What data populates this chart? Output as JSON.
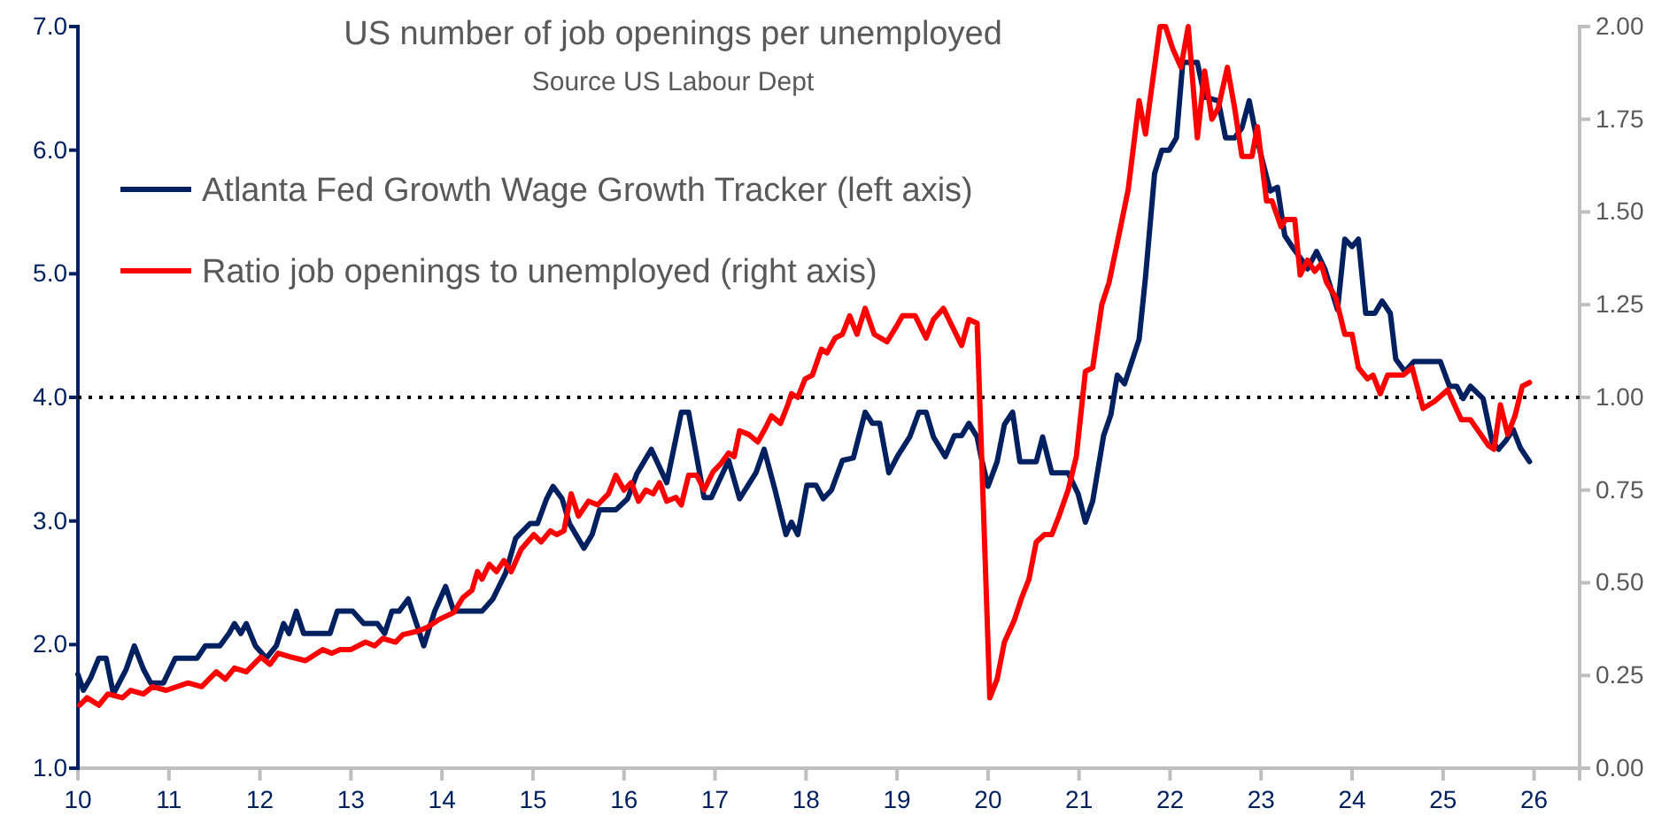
{
  "chart_data": {
    "type": "line",
    "title": "US number of job openings per unemployed",
    "subtitle": "Source US Labour Dept",
    "xlim": [
      10,
      26.5
    ],
    "xticks": [
      10,
      11,
      12,
      13,
      14,
      15,
      16,
      17,
      18,
      19,
      20,
      21,
      22,
      23,
      24,
      25,
      26
    ],
    "ylim": [
      1,
      7
    ],
    "yticks": [
      {
        "value": 1,
        "label": "1.0"
      },
      {
        "value": 2,
        "label": "2.0"
      },
      {
        "value": 3,
        "label": "3.0"
      },
      {
        "value": 4,
        "label": "4.0"
      },
      {
        "value": 5,
        "label": "5.0"
      },
      {
        "value": 6,
        "label": "6.0"
      },
      {
        "value": 7,
        "label": "7.0"
      }
    ],
    "y2lim": [
      0,
      2
    ],
    "y2ticks": [
      {
        "value": 0,
        "label": "0.00"
      },
      {
        "value": 0.25,
        "label": "0.25"
      },
      {
        "value": 0.5,
        "label": "0.50"
      },
      {
        "value": 0.75,
        "label": "0.75"
      },
      {
        "value": 1,
        "label": "1.00"
      },
      {
        "value": 1.25,
        "label": "1.25"
      },
      {
        "value": 1.5,
        "label": "1.50"
      },
      {
        "value": 1.75,
        "label": "1.75"
      },
      {
        "value": 2,
        "label": "2.00"
      }
    ],
    "grid": false,
    "legend": "top left",
    "line_style": "solid",
    "marker": "none",
    "ref_lines": [
      {
        "axis": "y",
        "value": 4,
        "color": "#000000",
        "line_style": "dotted"
      }
    ],
    "series": [
      {
        "name": "Atlanta Fed Growth Wage Growth Tracker (left axis)",
        "color": "#002060",
        "axis": "y",
        "x": [
          10.0,
          10.06,
          10.14,
          10.23,
          10.31,
          10.39,
          10.53,
          10.62,
          10.72,
          10.8,
          10.94,
          11.07,
          11.31,
          11.4,
          11.56,
          11.66,
          11.72,
          11.79,
          11.85,
          11.95,
          12.07,
          12.18,
          12.26,
          12.32,
          12.4,
          12.48,
          12.77,
          12.85,
          13.02,
          13.14,
          13.29,
          13.37,
          13.45,
          13.53,
          13.63,
          13.72,
          13.8,
          13.92,
          14.04,
          14.13,
          14.44,
          14.56,
          14.7,
          14.81,
          14.97,
          15.05,
          15.15,
          15.22,
          15.32,
          15.4,
          15.56,
          15.65,
          15.73,
          15.91,
          16.04,
          16.14,
          16.3,
          16.47,
          16.63,
          16.71,
          16.88,
          16.96,
          17.15,
          17.27,
          17.45,
          17.54,
          17.66,
          17.78,
          17.84,
          17.91,
          18.01,
          18.11,
          18.19,
          18.28,
          18.4,
          18.52,
          18.65,
          18.73,
          18.81,
          18.91,
          19.01,
          19.14,
          19.24,
          19.32,
          19.4,
          19.53,
          19.63,
          19.71,
          19.79,
          19.88,
          19.92,
          20.0,
          20.1,
          20.18,
          20.27,
          20.35,
          20.53,
          20.6,
          20.7,
          20.88,
          20.99,
          21.07,
          21.15,
          21.27,
          21.35,
          21.42,
          21.5,
          21.66,
          21.73,
          21.83,
          21.91,
          21.99,
          22.07,
          22.14,
          22.3,
          22.38,
          22.53,
          22.61,
          22.71,
          22.79,
          22.87,
          22.94,
          23.02,
          23.1,
          23.18,
          23.26,
          23.35,
          23.45,
          23.51,
          23.61,
          23.7,
          23.84,
          23.92,
          24.0,
          24.07,
          24.15,
          24.25,
          24.33,
          24.42,
          24.48,
          24.58,
          24.68,
          24.97,
          25.07,
          25.15,
          25.22,
          25.3,
          25.44,
          25.54,
          25.61,
          25.69,
          25.77,
          25.85,
          25.95
        ],
        "values": [
          1.76,
          1.63,
          1.73,
          1.89,
          1.89,
          1.6,
          1.8,
          1.99,
          1.8,
          1.69,
          1.69,
          1.89,
          1.89,
          1.99,
          1.99,
          2.09,
          2.17,
          2.09,
          2.17,
          1.99,
          1.89,
          1.99,
          2.17,
          2.09,
          2.27,
          2.09,
          2.09,
          2.27,
          2.27,
          2.17,
          2.17,
          2.09,
          2.27,
          2.27,
          2.37,
          2.17,
          1.99,
          2.27,
          2.47,
          2.27,
          2.27,
          2.37,
          2.58,
          2.86,
          2.98,
          2.98,
          3.18,
          3.28,
          3.18,
          2.98,
          2.78,
          2.89,
          3.09,
          3.09,
          3.18,
          3.38,
          3.58,
          3.31,
          3.88,
          3.88,
          3.19,
          3.19,
          3.49,
          3.18,
          3.39,
          3.58,
          3.25,
          2.89,
          2.99,
          2.89,
          3.29,
          3.29,
          3.18,
          3.25,
          3.49,
          3.51,
          3.88,
          3.79,
          3.79,
          3.39,
          3.53,
          3.68,
          3.88,
          3.88,
          3.68,
          3.52,
          3.69,
          3.69,
          3.79,
          3.68,
          3.53,
          3.28,
          3.48,
          3.78,
          3.88,
          3.48,
          3.48,
          3.68,
          3.39,
          3.39,
          3.22,
          2.99,
          3.16,
          3.69,
          3.86,
          4.18,
          4.11,
          4.47,
          4.97,
          5.81,
          6.0,
          6.0,
          6.1,
          6.71,
          6.71,
          6.43,
          6.4,
          6.1,
          6.1,
          6.18,
          6.4,
          6.14,
          5.9,
          5.67,
          5.7,
          5.31,
          5.21,
          5.11,
          5.04,
          5.18,
          5.04,
          4.71,
          5.28,
          5.22,
          5.28,
          4.68,
          4.68,
          4.78,
          4.68,
          4.31,
          4.21,
          4.29,
          4.29,
          4.09,
          4.09,
          3.99,
          4.09,
          3.99,
          3.64,
          3.58,
          3.65,
          3.74,
          3.59,
          3.48
        ]
      },
      {
        "name": "Ratio job openings to unemployed (right axis)",
        "color": "#ff0000",
        "axis": "y2",
        "x": [
          10.02,
          10.1,
          10.23,
          10.33,
          10.49,
          10.58,
          10.72,
          10.82,
          10.97,
          11.21,
          11.36,
          11.52,
          11.62,
          11.72,
          11.85,
          12.01,
          12.11,
          12.2,
          12.34,
          12.5,
          12.69,
          12.79,
          12.88,
          13.0,
          13.16,
          13.26,
          13.35,
          13.49,
          13.57,
          13.74,
          13.84,
          13.96,
          14.13,
          14.23,
          14.33,
          14.39,
          14.44,
          14.52,
          14.6,
          14.68,
          14.76,
          14.87,
          15.01,
          15.09,
          15.19,
          15.26,
          15.34,
          15.42,
          15.5,
          15.61,
          15.71,
          15.83,
          15.91,
          16.0,
          16.08,
          16.16,
          16.24,
          16.32,
          16.39,
          16.47,
          16.57,
          16.63,
          16.71,
          16.8,
          16.88,
          16.98,
          17.06,
          17.15,
          17.21,
          17.27,
          17.37,
          17.47,
          17.56,
          17.62,
          17.72,
          17.8,
          17.84,
          17.91,
          17.99,
          18.07,
          18.17,
          18.23,
          18.32,
          18.4,
          18.48,
          18.56,
          18.65,
          18.75,
          18.89,
          18.99,
          19.06,
          19.2,
          19.32,
          19.4,
          19.51,
          19.59,
          19.71,
          19.79,
          19.88,
          20.02,
          20.1,
          20.18,
          20.29,
          20.37,
          20.45,
          20.53,
          20.62,
          20.7,
          20.78,
          20.88,
          20.97,
          21.07,
          21.15,
          21.25,
          21.33,
          21.44,
          21.54,
          21.66,
          21.73,
          21.79,
          21.89,
          21.95,
          22.03,
          22.12,
          22.2,
          22.3,
          22.38,
          22.46,
          22.53,
          22.63,
          22.71,
          22.79,
          22.9,
          22.96,
          23.06,
          23.12,
          23.22,
          23.27,
          23.37,
          23.43,
          23.51,
          23.59,
          23.66,
          23.72,
          23.82,
          23.92,
          24.0,
          24.07,
          24.17,
          24.23,
          24.31,
          24.39,
          24.48,
          24.56,
          24.66,
          24.78,
          24.91,
          25.05,
          25.2,
          25.3,
          25.5,
          25.56,
          25.63,
          25.71,
          25.79,
          25.87,
          25.95
        ],
        "values": [
          0.17,
          0.19,
          0.17,
          0.2,
          0.19,
          0.21,
          0.2,
          0.22,
          0.21,
          0.23,
          0.22,
          0.26,
          0.24,
          0.27,
          0.26,
          0.3,
          0.28,
          0.31,
          0.3,
          0.29,
          0.32,
          0.31,
          0.32,
          0.32,
          0.34,
          0.33,
          0.35,
          0.34,
          0.36,
          0.37,
          0.38,
          0.4,
          0.42,
          0.46,
          0.48,
          0.53,
          0.51,
          0.55,
          0.53,
          0.56,
          0.53,
          0.59,
          0.63,
          0.61,
          0.64,
          0.63,
          0.64,
          0.74,
          0.68,
          0.72,
          0.71,
          0.74,
          0.79,
          0.75,
          0.77,
          0.72,
          0.75,
          0.74,
          0.77,
          0.72,
          0.73,
          0.71,
          0.79,
          0.79,
          0.75,
          0.8,
          0.82,
          0.85,
          0.84,
          0.91,
          0.9,
          0.88,
          0.92,
          0.95,
          0.93,
          0.98,
          1.01,
          1.0,
          1.05,
          1.06,
          1.13,
          1.12,
          1.16,
          1.17,
          1.22,
          1.17,
          1.24,
          1.17,
          1.15,
          1.19,
          1.22,
          1.22,
          1.16,
          1.21,
          1.24,
          1.2,
          1.14,
          1.21,
          1.2,
          0.19,
          0.24,
          0.34,
          0.4,
          0.46,
          0.51,
          0.61,
          0.63,
          0.63,
          0.68,
          0.75,
          0.84,
          1.07,
          1.08,
          1.25,
          1.31,
          1.44,
          1.56,
          1.8,
          1.71,
          1.82,
          2.0,
          2.0,
          1.94,
          1.89,
          2.0,
          1.7,
          1.88,
          1.75,
          1.78,
          1.89,
          1.78,
          1.65,
          1.65,
          1.73,
          1.53,
          1.53,
          1.46,
          1.48,
          1.48,
          1.33,
          1.37,
          1.34,
          1.36,
          1.31,
          1.27,
          1.17,
          1.17,
          1.08,
          1.05,
          1.06,
          1.01,
          1.06,
          1.06,
          1.06,
          1.08,
          0.97,
          0.99,
          1.02,
          0.94,
          0.94,
          0.87,
          0.86,
          0.98,
          0.9,
          0.95,
          1.03,
          1.04
        ]
      }
    ]
  }
}
